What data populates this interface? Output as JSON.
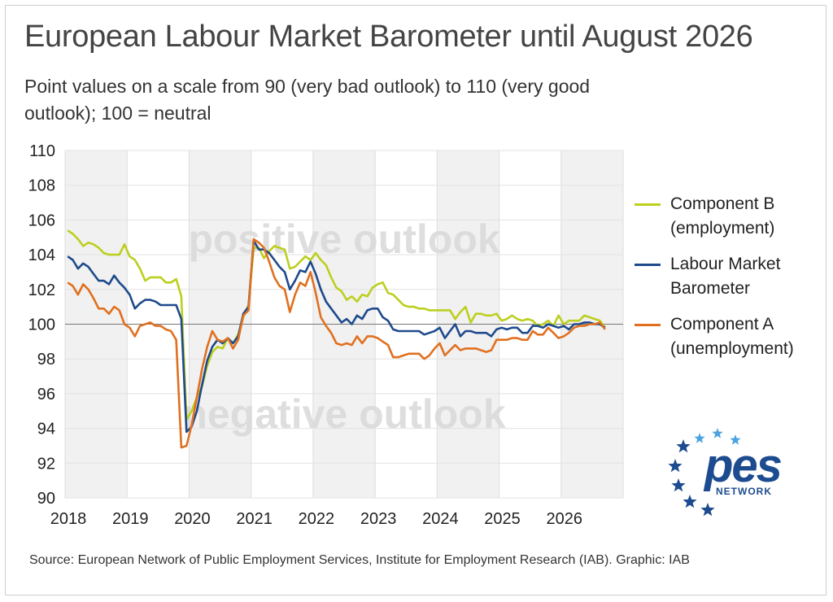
{
  "header": {
    "title": "European Labour Market Barometer until August 2026",
    "subtitle": "Point values on a scale from 90 (very bad outlook) to 110 (very good outlook); 100 = neutral"
  },
  "footer": {
    "source": "Source: European Network of Public Employment Services, Institute for Employment Research (IAB). Graphic: IAB"
  },
  "logo": {
    "word": "pes",
    "network": "NETWORK",
    "star_color": "#1c4b8f"
  },
  "chart_data": {
    "type": "line",
    "title": "European Labour Market Barometer until August 2026",
    "subtitle": "Point values on a scale from 90 (very bad outlook) to 110 (very good outlook); 100 = neutral",
    "xlabel": "",
    "ylabel": "",
    "ylim": [
      90,
      110
    ],
    "yticks": [
      90,
      92,
      94,
      96,
      98,
      100,
      102,
      104,
      106,
      108,
      110
    ],
    "x_tick_labels": [
      "2018",
      "2019",
      "2020",
      "2021",
      "2022",
      "2023",
      "2024",
      "2025",
      "2026"
    ],
    "x_start": "2018-01",
    "grid": true,
    "legend_position": "right",
    "reference_line": 100,
    "annotations": [
      "positive outlook",
      "negative outlook"
    ],
    "series": [
      {
        "name": "Component B (employment)",
        "label_lines": [
          "Component B",
          "(employment)"
        ],
        "color": "#bccf1e",
        "values": [
          105.4,
          105.2,
          104.9,
          104.5,
          104.7,
          104.6,
          104.4,
          104.1,
          104.0,
          104.0,
          104.0,
          104.6,
          103.9,
          103.7,
          103.2,
          102.5,
          102.7,
          102.7,
          102.7,
          102.4,
          102.4,
          102.6,
          101.6,
          94.5,
          95.0,
          95.8,
          96.4,
          97.6,
          98.4,
          98.7,
          98.6,
          99.2,
          98.9,
          99.4,
          100.4,
          101.1,
          104.4,
          104.4,
          103.8,
          104.2,
          104.5,
          104.4,
          104.3,
          103.2,
          103.3,
          103.6,
          103.9,
          103.7,
          104.1,
          103.7,
          103.4,
          102.7,
          102.1,
          101.9,
          101.4,
          101.6,
          101.3,
          101.7,
          101.6,
          102.1,
          102.3,
          102.4,
          101.8,
          101.7,
          101.4,
          101.1,
          101.0,
          101.0,
          100.9,
          100.9,
          100.8,
          100.8,
          100.8,
          100.8,
          100.8,
          100.3,
          100.7,
          101.0,
          100.1,
          100.6,
          100.6,
          100.5,
          100.5,
          100.6,
          100.2,
          100.3,
          100.5,
          100.3,
          100.2,
          100.3,
          100.2,
          99.9,
          100.0,
          100.2,
          99.9,
          100.5,
          100.0,
          100.2,
          100.2,
          100.2,
          100.5,
          100.4,
          100.3,
          100.2,
          99.8
        ]
      },
      {
        "name": "Labour Market Barometer",
        "label_lines": [
          "Labour Market",
          "Barometer"
        ],
        "color": "#1e4a8c",
        "values": [
          103.9,
          103.7,
          103.2,
          103.5,
          103.3,
          102.9,
          102.5,
          102.5,
          102.3,
          102.8,
          102.4,
          102.1,
          101.7,
          100.9,
          101.2,
          101.4,
          101.4,
          101.3,
          101.1,
          101.1,
          101.1,
          101.1,
          100.3,
          93.8,
          94.1,
          95.0,
          96.5,
          97.9,
          98.7,
          99.1,
          98.9,
          99.2,
          98.9,
          99.3,
          100.6,
          101.0,
          104.8,
          104.3,
          104.3,
          104.1,
          103.7,
          103.3,
          103.0,
          102.0,
          102.5,
          103.1,
          103.0,
          103.6,
          102.9,
          102.0,
          101.3,
          100.9,
          100.5,
          100.1,
          100.3,
          100.0,
          100.5,
          100.3,
          100.8,
          100.9,
          100.9,
          100.4,
          100.2,
          99.7,
          99.6,
          99.6,
          99.6,
          99.6,
          99.6,
          99.4,
          99.5,
          99.6,
          99.8,
          99.2,
          99.6,
          100.0,
          99.3,
          99.6,
          99.6,
          99.5,
          99.5,
          99.5,
          99.3,
          99.7,
          99.8,
          99.7,
          99.8,
          99.8,
          99.5,
          99.5,
          99.9,
          99.9,
          99.8,
          100.0,
          99.9,
          99.8,
          99.9,
          99.7,
          100.0,
          100.0,
          100.1,
          100.1,
          100.0,
          100.0,
          99.8
        ]
      },
      {
        "name": "Component A (unemployment)",
        "label_lines": [
          "Component A",
          "(unemployment)"
        ],
        "color": "#e07020",
        "values": [
          102.4,
          102.2,
          101.7,
          102.3,
          102.0,
          101.5,
          100.9,
          100.9,
          100.6,
          101.0,
          100.8,
          100.0,
          99.8,
          99.3,
          99.9,
          100.0,
          100.1,
          99.9,
          99.9,
          99.7,
          99.6,
          99.1,
          92.9,
          93.0,
          94.2,
          95.8,
          97.4,
          98.7,
          99.6,
          99.1,
          99.0,
          99.2,
          98.6,
          99.1,
          100.5,
          100.8,
          104.9,
          104.7,
          104.4,
          103.6,
          102.7,
          102.2,
          102.0,
          100.7,
          101.7,
          102.4,
          102.2,
          103.0,
          101.8,
          100.4,
          99.9,
          99.5,
          98.9,
          98.8,
          98.9,
          98.8,
          99.3,
          98.9,
          99.3,
          99.3,
          99.2,
          99.0,
          98.8,
          98.1,
          98.1,
          98.2,
          98.3,
          98.3,
          98.3,
          98.0,
          98.2,
          98.6,
          98.9,
          98.2,
          98.5,
          98.8,
          98.5,
          98.6,
          98.6,
          98.6,
          98.5,
          98.4,
          98.5,
          99.1,
          99.1,
          99.1,
          99.2,
          99.2,
          99.1,
          99.1,
          99.6,
          99.4,
          99.4,
          99.8,
          99.5,
          99.2,
          99.3,
          99.5,
          99.8,
          99.9,
          99.9,
          100.0,
          100.0,
          100.1,
          99.7
        ]
      }
    ]
  }
}
